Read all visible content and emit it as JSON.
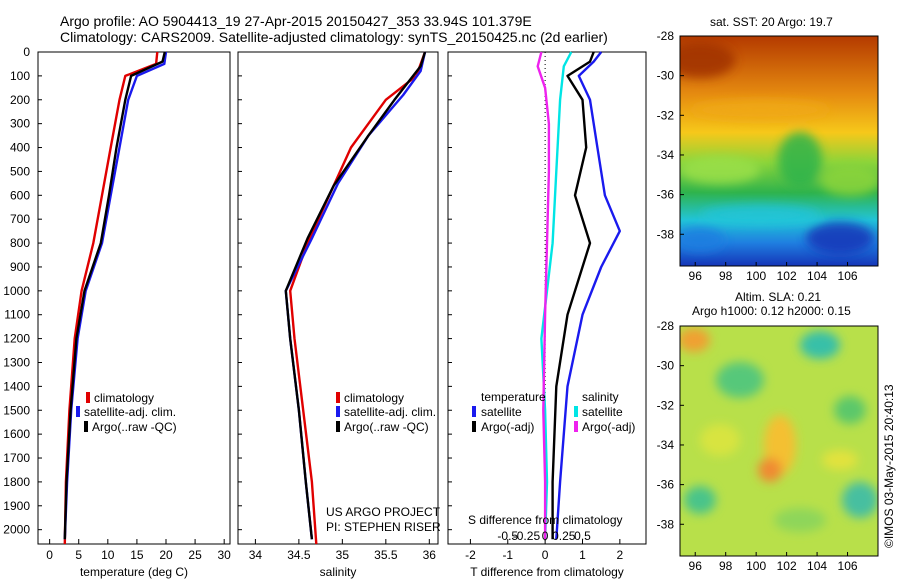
{
  "header": {
    "line1": "Argo profile: AO 5904413_19 27-Apr-2015 20150427_353 33.94S 101.379E",
    "line2": "Climatology: CARS2009. Satellite-adjusted climatology: synTS_20150425.nc (2d earlier)"
  },
  "credit": {
    "project": "US ARGO PROJECT",
    "pi": "PI: STEPHEN RISER",
    "stamp": "©IMOS 03-May-2015 20:40:13"
  },
  "colors": {
    "climatology": "#e00000",
    "satellite": "#1a1aee",
    "argo": "#000000",
    "sat_salinity": "#00e5e5",
    "argo_salinity": "#ee22ee",
    "axis": "#000000"
  },
  "chart_data": [
    {
      "type": "line",
      "id": "temperature",
      "xlabel": "temperature (deg C)",
      "ylabel": "",
      "xlim": [
        -2,
        31
      ],
      "ylim": [
        2060,
        0
      ],
      "xticks": [
        0,
        5,
        10,
        15,
        20,
        25,
        30
      ],
      "yticks": [
        0,
        100,
        200,
        300,
        400,
        500,
        600,
        700,
        800,
        900,
        1000,
        1100,
        1200,
        1300,
        1400,
        1500,
        1600,
        1700,
        1800,
        1900,
        2000
      ],
      "legend": [
        "climatology",
        "satellite-adj. clim.",
        "Argo(..raw -QC)"
      ],
      "series": [
        {
          "name": "climatology",
          "color": "#e00000",
          "points": [
            [
              18.5,
              0
            ],
            [
              18.3,
              50
            ],
            [
              13,
              100
            ],
            [
              12,
              200
            ],
            [
              10.5,
              400
            ],
            [
              9,
              600
            ],
            [
              7.5,
              800
            ],
            [
              5.5,
              1000
            ],
            [
              4.3,
              1200
            ],
            [
              3.4,
              1500
            ],
            [
              2.8,
              1800
            ],
            [
              2.6,
              2060
            ]
          ]
        },
        {
          "name": "satellite-adj. clim.",
          "color": "#1a1aee",
          "points": [
            [
              20,
              0
            ],
            [
              19.7,
              50
            ],
            [
              15,
              100
            ],
            [
              13.5,
              200
            ],
            [
              12,
              400
            ],
            [
              10.5,
              600
            ],
            [
              9,
              800
            ],
            [
              6.2,
              1000
            ],
            [
              4.8,
              1200
            ],
            [
              3.7,
              1500
            ],
            [
              3,
              1800
            ],
            [
              2.6,
              2040
            ]
          ]
        },
        {
          "name": "Argo(..raw -QC)",
          "color": "#000000",
          "points": [
            [
              19.8,
              0
            ],
            [
              19.4,
              40
            ],
            [
              14,
              100
            ],
            [
              13,
              200
            ],
            [
              11.5,
              400
            ],
            [
              10.2,
              600
            ],
            [
              8.8,
              800
            ],
            [
              6,
              1000
            ],
            [
              4.6,
              1200
            ],
            [
              3.6,
              1500
            ],
            [
              2.9,
              1800
            ],
            [
              2.6,
              2040
            ]
          ]
        }
      ]
    },
    {
      "type": "line",
      "id": "salinity",
      "xlabel": "salinity",
      "ylabel": "",
      "xlim": [
        33.8,
        36.1
      ],
      "ylim": [
        2060,
        0
      ],
      "xticks": [
        34,
        34.5,
        35,
        35.5,
        36
      ],
      "legend": [
        "climatology",
        "satellite-adj. clim.",
        "Argo(..raw -QC)"
      ],
      "series": [
        {
          "name": "climatology",
          "color": "#e00000",
          "points": [
            [
              35.95,
              0
            ],
            [
              35.85,
              100
            ],
            [
              35.5,
              200
            ],
            [
              35.1,
              400
            ],
            [
              34.85,
              600
            ],
            [
              34.6,
              800
            ],
            [
              34.4,
              1000
            ],
            [
              34.45,
              1200
            ],
            [
              34.55,
              1500
            ],
            [
              34.65,
              1800
            ],
            [
              34.7,
              2060
            ]
          ]
        },
        {
          "name": "satellite-adj. clim.",
          "color": "#1a1aee",
          "points": [
            [
              35.95,
              0
            ],
            [
              35.9,
              80
            ],
            [
              35.7,
              180
            ],
            [
              35.3,
              350
            ],
            [
              34.95,
              550
            ],
            [
              34.65,
              780
            ],
            [
              34.35,
              1000
            ],
            [
              34.4,
              1200
            ],
            [
              34.5,
              1500
            ],
            [
              34.58,
              1800
            ],
            [
              34.65,
              2040
            ]
          ]
        },
        {
          "name": "Argo(..raw -QC)",
          "color": "#000000",
          "points": [
            [
              35.95,
              0
            ],
            [
              35.9,
              60
            ],
            [
              35.6,
              200
            ],
            [
              35.3,
              350
            ],
            [
              34.9,
              560
            ],
            [
              34.6,
              780
            ],
            [
              34.35,
              1000
            ],
            [
              34.4,
              1200
            ],
            [
              34.5,
              1500
            ],
            [
              34.58,
              1800
            ],
            [
              34.65,
              2040
            ]
          ]
        }
      ]
    },
    {
      "type": "line",
      "id": "difference",
      "xlabel": "T difference from climatology",
      "xlabel_top": "S difference from climatology",
      "xlim": [
        -2.6,
        2.7
      ],
      "ylim": [
        2060,
        0
      ],
      "xticks": [
        -2,
        -1,
        0,
        1,
        2
      ],
      "xticks_top_labels": [
        "-0.5",
        "-0.25",
        "0",
        "0.25",
        "0.5"
      ],
      "legend_groups": [
        {
          "title": "temperature",
          "items": [
            "satellite",
            "Argo(-adj)"
          ]
        },
        {
          "title": "salinity",
          "items": [
            "satellite",
            "Argo(-adj)"
          ]
        }
      ],
      "series": [
        {
          "name": "temperature satellite",
          "color": "#1a1aee",
          "points": [
            [
              1.5,
              0
            ],
            [
              1.3,
              40
            ],
            [
              0.9,
              100
            ],
            [
              1.2,
              200
            ],
            [
              1.4,
              400
            ],
            [
              1.6,
              600
            ],
            [
              2.0,
              750
            ],
            [
              1.5,
              900
            ],
            [
              1.0,
              1100
            ],
            [
              0.6,
              1400
            ],
            [
              0.4,
              1800
            ],
            [
              0.3,
              2040
            ]
          ]
        },
        {
          "name": "temperature Argo(-adj)",
          "color": "#000000",
          "points": [
            [
              1.3,
              0
            ],
            [
              1.2,
              40
            ],
            [
              0.6,
              100
            ],
            [
              1.0,
              200
            ],
            [
              1.1,
              400
            ],
            [
              0.8,
              600
            ],
            [
              1.2,
              800
            ],
            [
              0.6,
              1100
            ],
            [
              0.3,
              1400
            ],
            [
              0.2,
              1800
            ],
            [
              0.2,
              2040
            ]
          ]
        },
        {
          "name": "salinity satellite",
          "color": "#00e5e5",
          "points": [
            [
              0.7,
              0
            ],
            [
              0.5,
              60
            ],
            [
              0.4,
              200
            ],
            [
              0.3,
              500
            ],
            [
              0.2,
              800
            ],
            [
              0.05,
              1000
            ],
            [
              -0.1,
              1200
            ],
            [
              0.0,
              1500
            ],
            [
              0.05,
              1800
            ],
            [
              0.0,
              2040
            ]
          ]
        },
        {
          "name": "salinity Argo(-adj)",
          "color": "#ee22ee",
          "points": [
            [
              -0.1,
              0
            ],
            [
              -0.2,
              60
            ],
            [
              0.0,
              150
            ],
            [
              0.1,
              300
            ],
            [
              0.1,
              500
            ],
            [
              0.05,
              800
            ],
            [
              0.0,
              1100
            ],
            [
              -0.05,
              1500
            ],
            [
              0.0,
              1800
            ],
            [
              0.0,
              2040
            ]
          ]
        }
      ]
    },
    {
      "type": "heatmap",
      "id": "sst_map",
      "title": "sat. SST: 20 Argo: 19.7",
      "xlim": [
        95,
        108
      ],
      "ylim": [
        -39.6,
        -28
      ],
      "xticks": [
        96,
        98,
        100,
        102,
        104,
        106
      ],
      "yticks": [
        -28,
        -30,
        -32,
        -34,
        -36,
        -38
      ]
    },
    {
      "type": "heatmap",
      "id": "sla_map",
      "title": "Altim. SLA: 0.21",
      "subtitle": "Argo h1000: 0.12 h2000: 0.15",
      "xlim": [
        95,
        108
      ],
      "ylim": [
        -39.6,
        -28
      ],
      "xticks": [
        96,
        98,
        100,
        102,
        104,
        106
      ],
      "yticks": [
        -28,
        -30,
        -32,
        -34,
        -36,
        -38
      ]
    }
  ]
}
